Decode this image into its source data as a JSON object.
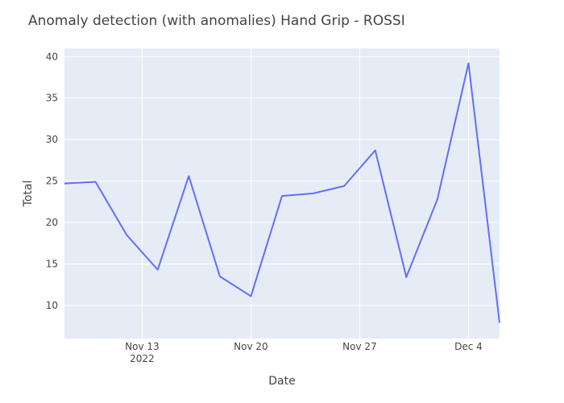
{
  "chart_data": {
    "type": "line",
    "title": "Anomaly detection (with anomalies) Hand Grip - ROSSI",
    "x_label": "Date",
    "y_label": "Total",
    "x": [
      "2022-11-08",
      "2022-11-10",
      "2022-11-12",
      "2022-11-14",
      "2022-11-16",
      "2022-11-18",
      "2022-11-20",
      "2022-11-22",
      "2022-11-24",
      "2022-11-26",
      "2022-11-28",
      "2022-11-30",
      "2022-12-02",
      "2022-12-04",
      "2022-12-06"
    ],
    "series": [
      {
        "name": "Total",
        "color": "#636efa",
        "values": [
          24.7,
          24.9,
          18.5,
          14.3,
          25.6,
          13.5,
          11.1,
          23.2,
          23.5,
          24.4,
          28.7,
          13.4,
          22.8,
          39.2,
          7.9
        ]
      }
    ],
    "xlim": [
      "2022-11-08",
      "2022-12-06"
    ],
    "xticks": [
      {
        "value": "2022-11-13",
        "label": "Nov 13\n2022"
      },
      {
        "value": "2022-11-20",
        "label": "Nov 20"
      },
      {
        "value": "2022-11-27",
        "label": "Nov 27"
      },
      {
        "value": "2022-12-04",
        "label": "Dec 4"
      }
    ],
    "ylim": [
      6,
      41
    ],
    "yticks": [
      10,
      15,
      20,
      25,
      30,
      35,
      40
    ],
    "grid": true
  }
}
